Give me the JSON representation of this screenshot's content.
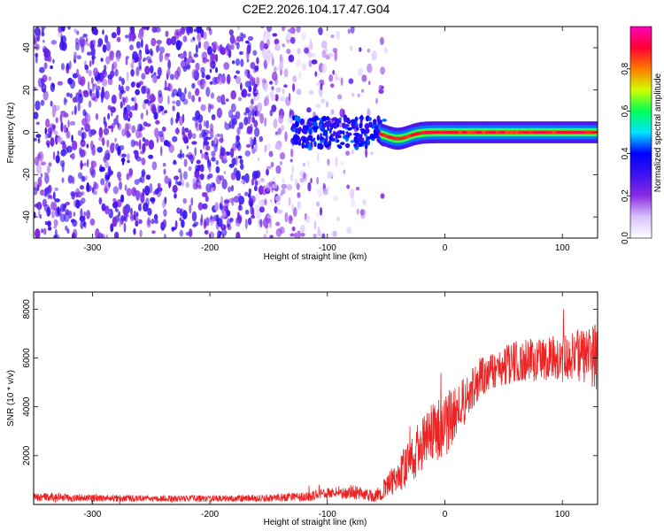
{
  "figure": {
    "title": "C2E2.2026.104.17.47.G04"
  },
  "chart_data": [
    {
      "type": "heatmap",
      "name": "spectrogram",
      "xlabel": "Height of straight line (km)",
      "ylabel": "Frequency (Hz)",
      "xlim": [
        -350,
        130
      ],
      "ylim": [
        -50,
        50
      ],
      "xticks": [
        -300,
        -200,
        -100,
        0,
        100
      ],
      "yticks": [
        -40,
        -20,
        0,
        20,
        40
      ],
      "colorbar": {
        "label": "Normalized spectral amplitude",
        "range": [
          0,
          1
        ],
        "ticks": [
          0.0,
          0.2,
          0.4,
          0.6,
          0.8
        ],
        "colors": [
          "#ffffff",
          "#d8c2ff",
          "#8a2be2",
          "#3c14f0",
          "#0000ff",
          "#00e5ff",
          "#00ff55",
          "#d2ff00",
          "#ff7a00",
          "#ff0033",
          "#ff00bb"
        ]
      },
      "features": {
        "noise_region_x": [
          -350,
          -55
        ],
        "carrier_start_x": -55,
        "carrier_freq_hz": 0,
        "carrier_dip_x": -40,
        "carrier_dip_hz": -3
      }
    },
    {
      "type": "line",
      "name": "snr",
      "xlabel": "Height of straight line (km)",
      "ylabel": "SNR (10 * v/v)",
      "xlim": [
        -350,
        130
      ],
      "ylim": [
        0,
        8700
      ],
      "xticks": [
        -300,
        -200,
        -100,
        0,
        100
      ],
      "yticks": [
        2000,
        4000,
        6000,
        8000
      ],
      "color": "#ee2222",
      "series": [
        {
          "name": "SNR",
          "x": [
            -350,
            -300,
            -250,
            -200,
            -150,
            -120,
            -100,
            -80,
            -60,
            -50,
            -40,
            -30,
            -20,
            -10,
            0,
            10,
            20,
            30,
            40,
            50,
            60,
            70,
            80,
            90,
            100,
            110,
            120,
            130
          ],
          "y": [
            300,
            260,
            250,
            240,
            260,
            320,
            430,
            520,
            330,
            700,
            1150,
            1800,
            2450,
            2950,
            3250,
            3750,
            4450,
            5200,
            5500,
            5700,
            5850,
            5950,
            5900,
            6050,
            6000,
            6100,
            6000,
            6050
          ],
          "amp": [
            180,
            140,
            130,
            130,
            150,
            180,
            250,
            280,
            250,
            450,
            700,
            950,
            1150,
            1250,
            1350,
            1100,
            900,
            850,
            800,
            800,
            850,
            900,
            900,
            950,
            1000,
            1100,
            1250,
            1350
          ]
        }
      ]
    }
  ]
}
